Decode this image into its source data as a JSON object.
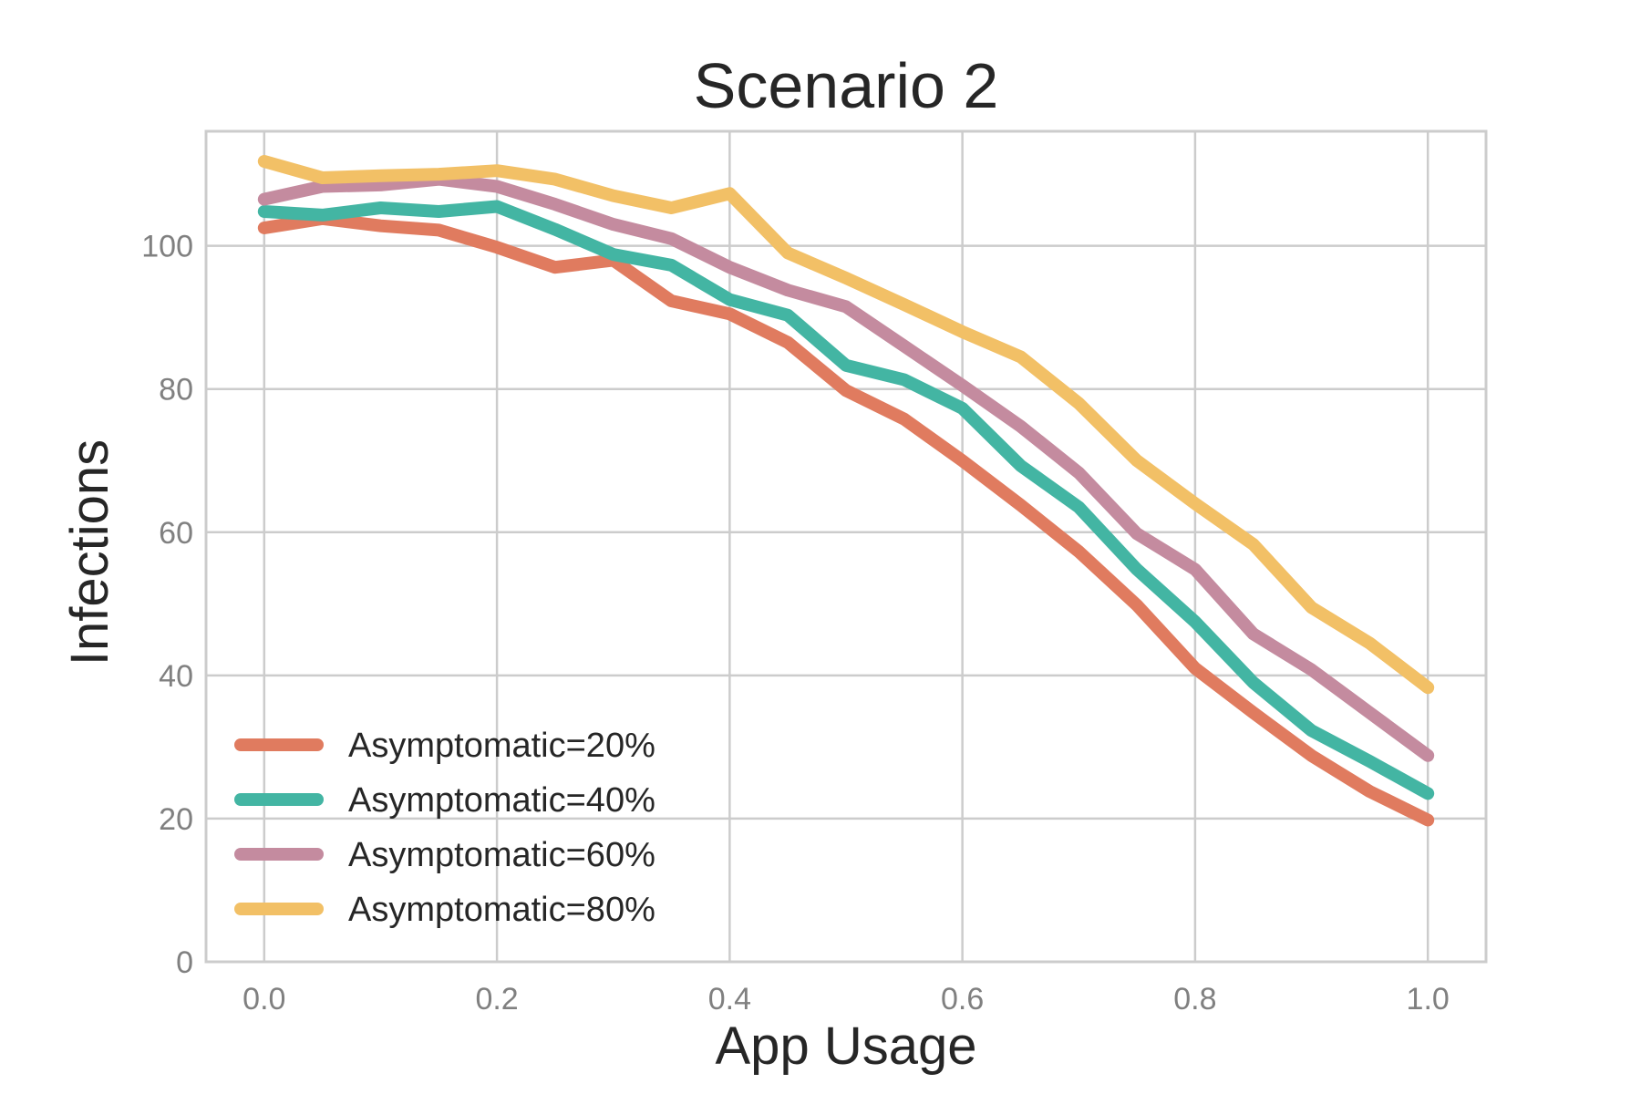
{
  "chart_data": {
    "type": "line",
    "title": "Scenario 2",
    "xlabel": "App Usage",
    "ylabel": "Infections",
    "xlim": [
      -0.05,
      1.05
    ],
    "ylim": [
      0,
      116
    ],
    "xticks": [
      0.0,
      0.2,
      0.4,
      0.6,
      0.8,
      1.0
    ],
    "xtick_labels": [
      "0.0",
      "0.2",
      "0.4",
      "0.6",
      "0.8",
      "1.0"
    ],
    "yticks": [
      0,
      20,
      40,
      60,
      80,
      100
    ],
    "ytick_labels": [
      "0",
      "20",
      "40",
      "60",
      "80",
      "100"
    ],
    "grid": true,
    "legend_position": "lower-left",
    "x": [
      0.0,
      0.05,
      0.1,
      0.15,
      0.2,
      0.25,
      0.3,
      0.35,
      0.4,
      0.45,
      0.5,
      0.55,
      0.6,
      0.65,
      0.7,
      0.75,
      0.8,
      0.85,
      0.9,
      0.95,
      1.0
    ],
    "series": [
      {
        "name": "Asymptomatic=20%",
        "color": "#e07b5f",
        "values": [
          102.5,
          103.8,
          102.8,
          102.2,
          99.8,
          97.0,
          98.0,
          92.3,
          90.5,
          86.5,
          79.8,
          75.8,
          70.0,
          63.8,
          57.3,
          49.8,
          41.0,
          34.8,
          28.8,
          23.8,
          19.8
        ]
      },
      {
        "name": "Asymptomatic=40%",
        "color": "#43b5a3",
        "values": [
          104.8,
          104.3,
          105.3,
          104.8,
          105.5,
          102.3,
          98.8,
          97.3,
          92.5,
          90.3,
          83.3,
          81.3,
          77.3,
          69.3,
          63.5,
          54.8,
          47.5,
          39.0,
          32.3,
          28.0,
          23.5
        ]
      },
      {
        "name": "Asymptomatic=60%",
        "color": "#c48b9f",
        "values": [
          106.5,
          108.3,
          108.5,
          109.3,
          108.3,
          105.8,
          103.0,
          101.0,
          97.0,
          93.8,
          91.5,
          86.0,
          80.5,
          74.8,
          68.3,
          59.8,
          54.8,
          45.8,
          40.8,
          34.8,
          28.8
        ]
      },
      {
        "name": "Asymptomatic=80%",
        "color": "#f2c066",
        "values": [
          111.8,
          109.5,
          109.8,
          110.0,
          110.5,
          109.3,
          107.0,
          105.3,
          107.3,
          99.0,
          95.5,
          91.8,
          88.0,
          84.5,
          78.0,
          70.0,
          64.0,
          58.3,
          49.5,
          44.5,
          38.3
        ]
      }
    ]
  }
}
